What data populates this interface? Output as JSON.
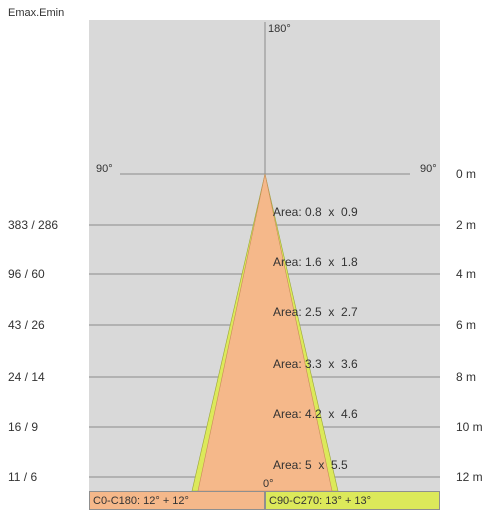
{
  "header": {
    "emax_emin": "Emax.Emin"
  },
  "angles": {
    "top": "180°",
    "left": "90°",
    "right": "90°",
    "bottom": "0°"
  },
  "distances": [
    "0 m",
    "2 m",
    "4 m",
    "6 m",
    "8 m",
    "10 m",
    "12 m"
  ],
  "illuminance": [
    "383 / 286",
    "96 / 60",
    "43 / 26",
    "24 / 14",
    "16 / 9",
    "11 / 6"
  ],
  "areas": [
    "Area: 0.8  x  0.9",
    "Area: 1.6  x  1.8",
    "Area: 2.5  x  2.7",
    "Area: 3.3  x  3.6",
    "Area: 4.2  x  4.6",
    "Area: 5  x  5.5"
  ],
  "legend": {
    "c0_c180": "C0-C180: 12° + 12°",
    "c90_c270": "C90-C270: 13° + 13°"
  },
  "colors": {
    "background": "#d9d9d9",
    "beam_c0_c180": "#f5b88a",
    "beam_c90_c270": "#dce95a",
    "grid": "#8c8c8c"
  }
}
